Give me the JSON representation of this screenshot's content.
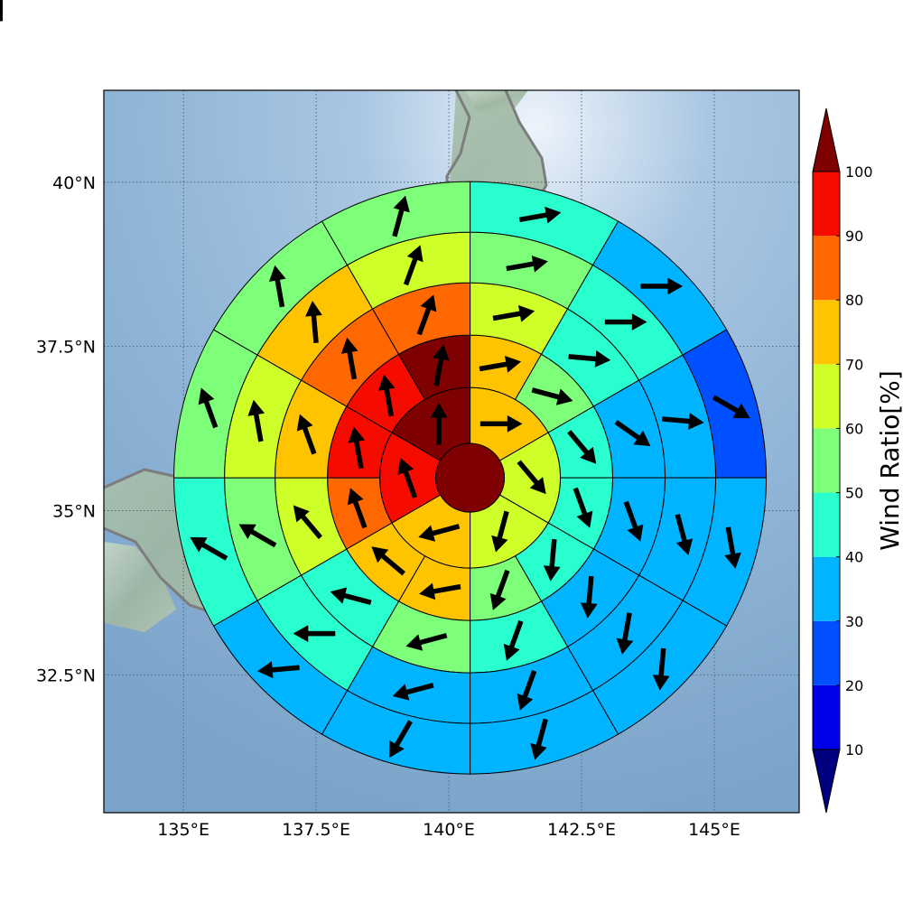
{
  "axes": {
    "x_ticks": [
      {
        "value": 135,
        "label": "135°E"
      },
      {
        "value": 137.5,
        "label": "137.5°E"
      },
      {
        "value": 140,
        "label": "140°E"
      },
      {
        "value": 142.5,
        "label": "142.5°E"
      },
      {
        "value": 145,
        "label": "145°E"
      }
    ],
    "y_ticks": [
      {
        "value": 40,
        "label": "40°N"
      },
      {
        "value": 37.5,
        "label": "37.5°N"
      },
      {
        "value": 35,
        "label": "35°N"
      },
      {
        "value": 32.5,
        "label": "32.5°N"
      }
    ],
    "lon_range": [
      133.5,
      146.6
    ],
    "lat_range": [
      30.4,
      41.4
    ]
  },
  "colorbar": {
    "title": "Wind Ratio[%]",
    "levels": [
      10,
      20,
      30,
      40,
      50,
      60,
      70,
      80,
      90,
      100
    ],
    "colors": [
      "#00007f",
      "#0000e8",
      "#0050ff",
      "#00b4ff",
      "#29ffce",
      "#7dff7a",
      "#ceff29",
      "#ffc400",
      "#ff6700",
      "#f50b00",
      "#7f0000"
    ],
    "extend": "both"
  },
  "chart_data": {
    "type": "heatmap",
    "projection": "polar sectors around storm center",
    "center": {
      "lon": 140.4,
      "lat": 35.5
    },
    "center_disk_ratio": 100,
    "rings": [
      {
        "ring": 1,
        "sectors": [
          {
            "bearing": 0,
            "ratio": 75,
            "wind_dir": 90
          },
          {
            "bearing": 60,
            "ratio": 65,
            "wind_dir": 140
          },
          {
            "bearing": 120,
            "ratio": 65,
            "wind_dir": 195
          },
          {
            "bearing": 180,
            "ratio": 75,
            "wind_dir": 255
          },
          {
            "bearing": 240,
            "ratio": 95,
            "wind_dir": 340
          },
          {
            "bearing": 300,
            "ratio": 100,
            "wind_dir": 0
          }
        ]
      },
      {
        "ring": 2,
        "sectors": [
          {
            "bearing": 0,
            "ratio": 75,
            "wind_dir": 80
          },
          {
            "bearing": 30,
            "ratio": 55,
            "wind_dir": 105
          },
          {
            "bearing": 60,
            "ratio": 45,
            "wind_dir": 140
          },
          {
            "bearing": 90,
            "ratio": 45,
            "wind_dir": 160
          },
          {
            "bearing": 120,
            "ratio": 45,
            "wind_dir": 185
          },
          {
            "bearing": 150,
            "ratio": 55,
            "wind_dir": 200
          },
          {
            "bearing": 180,
            "ratio": 75,
            "wind_dir": 260
          },
          {
            "bearing": 210,
            "ratio": 75,
            "wind_dir": 310
          },
          {
            "bearing": 240,
            "ratio": 85,
            "wind_dir": 340
          },
          {
            "bearing": 270,
            "ratio": 95,
            "wind_dir": 350
          },
          {
            "bearing": 300,
            "ratio": 95,
            "wind_dir": 350
          },
          {
            "bearing": 330,
            "ratio": 100,
            "wind_dir": 10
          }
        ]
      },
      {
        "ring": 3,
        "sectors": [
          {
            "bearing": 0,
            "ratio": 65,
            "wind_dir": 80
          },
          {
            "bearing": 30,
            "ratio": 45,
            "wind_dir": 95
          },
          {
            "bearing": 60,
            "ratio": 35,
            "wind_dir": 125
          },
          {
            "bearing": 90,
            "ratio": 35,
            "wind_dir": 160
          },
          {
            "bearing": 120,
            "ratio": 35,
            "wind_dir": 185
          },
          {
            "bearing": 150,
            "ratio": 45,
            "wind_dir": 200
          },
          {
            "bearing": 180,
            "ratio": 55,
            "wind_dir": 255
          },
          {
            "bearing": 210,
            "ratio": 45,
            "wind_dir": 285
          },
          {
            "bearing": 240,
            "ratio": 65,
            "wind_dir": 320
          },
          {
            "bearing": 270,
            "ratio": 75,
            "wind_dir": 340
          },
          {
            "bearing": 300,
            "ratio": 85,
            "wind_dir": 350
          },
          {
            "bearing": 330,
            "ratio": 85,
            "wind_dir": 20
          }
        ]
      },
      {
        "ring": 4,
        "sectors": [
          {
            "bearing": 0,
            "ratio": 55,
            "wind_dir": 80
          },
          {
            "bearing": 30,
            "ratio": 45,
            "wind_dir": 90
          },
          {
            "bearing": 60,
            "ratio": 35,
            "wind_dir": 95
          },
          {
            "bearing": 90,
            "ratio": 35,
            "wind_dir": 165
          },
          {
            "bearing": 120,
            "ratio": 35,
            "wind_dir": 190
          },
          {
            "bearing": 150,
            "ratio": 35,
            "wind_dir": 200
          },
          {
            "bearing": 180,
            "ratio": 35,
            "wind_dir": 255
          },
          {
            "bearing": 210,
            "ratio": 45,
            "wind_dir": 270
          },
          {
            "bearing": 240,
            "ratio": 55,
            "wind_dir": 300
          },
          {
            "bearing": 270,
            "ratio": 65,
            "wind_dir": 350
          },
          {
            "bearing": 300,
            "ratio": 75,
            "wind_dir": 355
          },
          {
            "bearing": 330,
            "ratio": 65,
            "wind_dir": 20
          }
        ]
      },
      {
        "ring": 5,
        "sectors": [
          {
            "bearing": 0,
            "ratio": 45,
            "wind_dir": 80
          },
          {
            "bearing": 30,
            "ratio": 35,
            "wind_dir": 90
          },
          {
            "bearing": 60,
            "ratio": 25,
            "wind_dir": 120
          },
          {
            "bearing": 90,
            "ratio": 35,
            "wind_dir": 170
          },
          {
            "bearing": 120,
            "ratio": 35,
            "wind_dir": 185
          },
          {
            "bearing": 150,
            "ratio": 35,
            "wind_dir": 195
          },
          {
            "bearing": 180,
            "ratio": 35,
            "wind_dir": 210
          },
          {
            "bearing": 210,
            "ratio": 35,
            "wind_dir": 265
          },
          {
            "bearing": 240,
            "ratio": 45,
            "wind_dir": 300
          },
          {
            "bearing": 270,
            "ratio": 55,
            "wind_dir": 340
          },
          {
            "bearing": 300,
            "ratio": 55,
            "wind_dir": 350
          },
          {
            "bearing": 330,
            "ratio": 55,
            "wind_dir": 15
          }
        ]
      },
      {
        "ring": 6,
        "sectors": [
          {
            "bearing": 0,
            "ratio": 45,
            "wind_dir": 75
          },
          {
            "bearing": 30,
            "ratio": 35,
            "wind_dir": 85
          },
          {
            "bearing": 60,
            "ratio": 25,
            "wind_dir": 130
          },
          {
            "bearing": 90,
            "ratio": 25,
            "wind_dir": 180
          },
          {
            "bearing": 120,
            "ratio": 35,
            "wind_dir": 195
          },
          {
            "bearing": 150,
            "ratio": 25,
            "wind_dir": 205
          },
          {
            "bearing": 180,
            "ratio": 25,
            "wind_dir": 235
          },
          {
            "bearing": 210,
            "ratio": 25,
            "wind_dir": 255
          },
          {
            "bearing": 240,
            "ratio": 35,
            "wind_dir": 300
          },
          {
            "bearing": 270,
            "ratio": 45,
            "wind_dir": 340
          },
          {
            "bearing": 300,
            "ratio": 55,
            "wind_dir": 345
          },
          {
            "bearing": 330,
            "ratio": 55,
            "wind_dir": 20
          }
        ]
      }
    ]
  }
}
